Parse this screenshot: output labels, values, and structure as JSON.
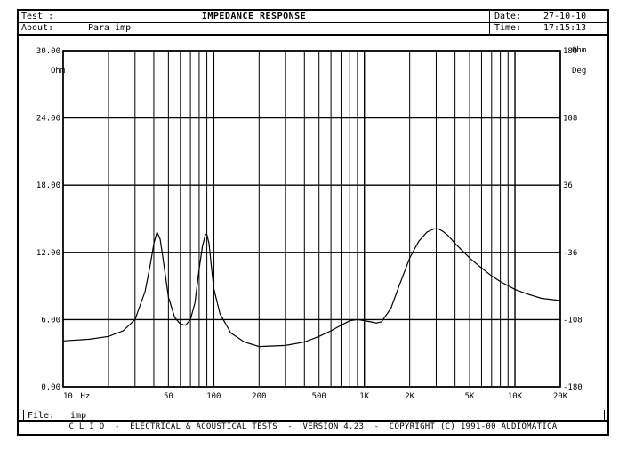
{
  "header": {
    "test_label": "Test :",
    "about_label": "About:",
    "about_value": "Para imp",
    "title": "IMPEDANCE RESPONSE",
    "date_label": "Date:",
    "date_value": "27-10-10",
    "time_label": "Time:",
    "time_value": "17:15:13"
  },
  "file": {
    "label": "File:",
    "value": "imp"
  },
  "footer": {
    "text": "C L I O  -  ELECTRICAL & ACOUSTICAL TESTS  -  VERSION 4.23  -  COPYRIGHT (C) 1991-00 AUDIOMATICA"
  },
  "chart_data": {
    "type": "line",
    "title": "IMPEDANCE RESPONSE",
    "xscale": "log",
    "xlim": [
      10,
      20000
    ],
    "ylim": [
      0,
      30
    ],
    "y2lim": [
      -180,
      180
    ],
    "y_unit": "Ohm",
    "y2_unit": "Deg",
    "x_unit": "Hz",
    "grid": true,
    "x_ticks": [
      "10",
      "Hz",
      "50",
      "100",
      "200",
      "500",
      "1K",
      "2K",
      "5K",
      "10K",
      "20K"
    ],
    "y_ticks": [
      "0.00",
      "6.00",
      "12.00",
      "18.00",
      "24.00",
      "30.00"
    ],
    "y2_ticks": [
      "-180",
      "-108",
      "-36",
      "36",
      "108",
      "180"
    ],
    "series": [
      {
        "x": [
          10,
          15,
          20,
          25,
          30,
          35,
          38,
          40,
          42,
          44,
          46,
          50,
          55,
          60,
          65,
          70,
          75,
          80,
          84,
          88,
          90,
          93,
          96,
          100,
          110,
          130,
          160,
          200,
          300,
          400,
          500,
          600,
          700,
          800,
          900,
          1000,
          1100,
          1200,
          1300,
          1500,
          1700,
          2000,
          2300,
          2600,
          2900,
          3100,
          3300,
          3600,
          4000,
          5000,
          6000,
          7000,
          8000,
          10000,
          12000,
          15000,
          20000
        ],
        "y": [
          4.1,
          4.25,
          4.5,
          5.0,
          6.0,
          8.5,
          11.0,
          12.8,
          13.8,
          13.2,
          11.5,
          8.0,
          6.2,
          5.6,
          5.5,
          6.0,
          7.5,
          10.5,
          12.5,
          13.6,
          13.6,
          12.8,
          11.0,
          8.8,
          6.5,
          4.8,
          4.0,
          3.6,
          3.7,
          4.0,
          4.5,
          5.0,
          5.5,
          5.9,
          6.0,
          5.9,
          5.8,
          5.7,
          5.8,
          7.0,
          9.0,
          11.5,
          13.0,
          13.8,
          14.1,
          14.1,
          13.9,
          13.5,
          12.8,
          11.5,
          10.6,
          9.9,
          9.4,
          8.7,
          8.3,
          7.9,
          7.7
        ]
      }
    ]
  }
}
